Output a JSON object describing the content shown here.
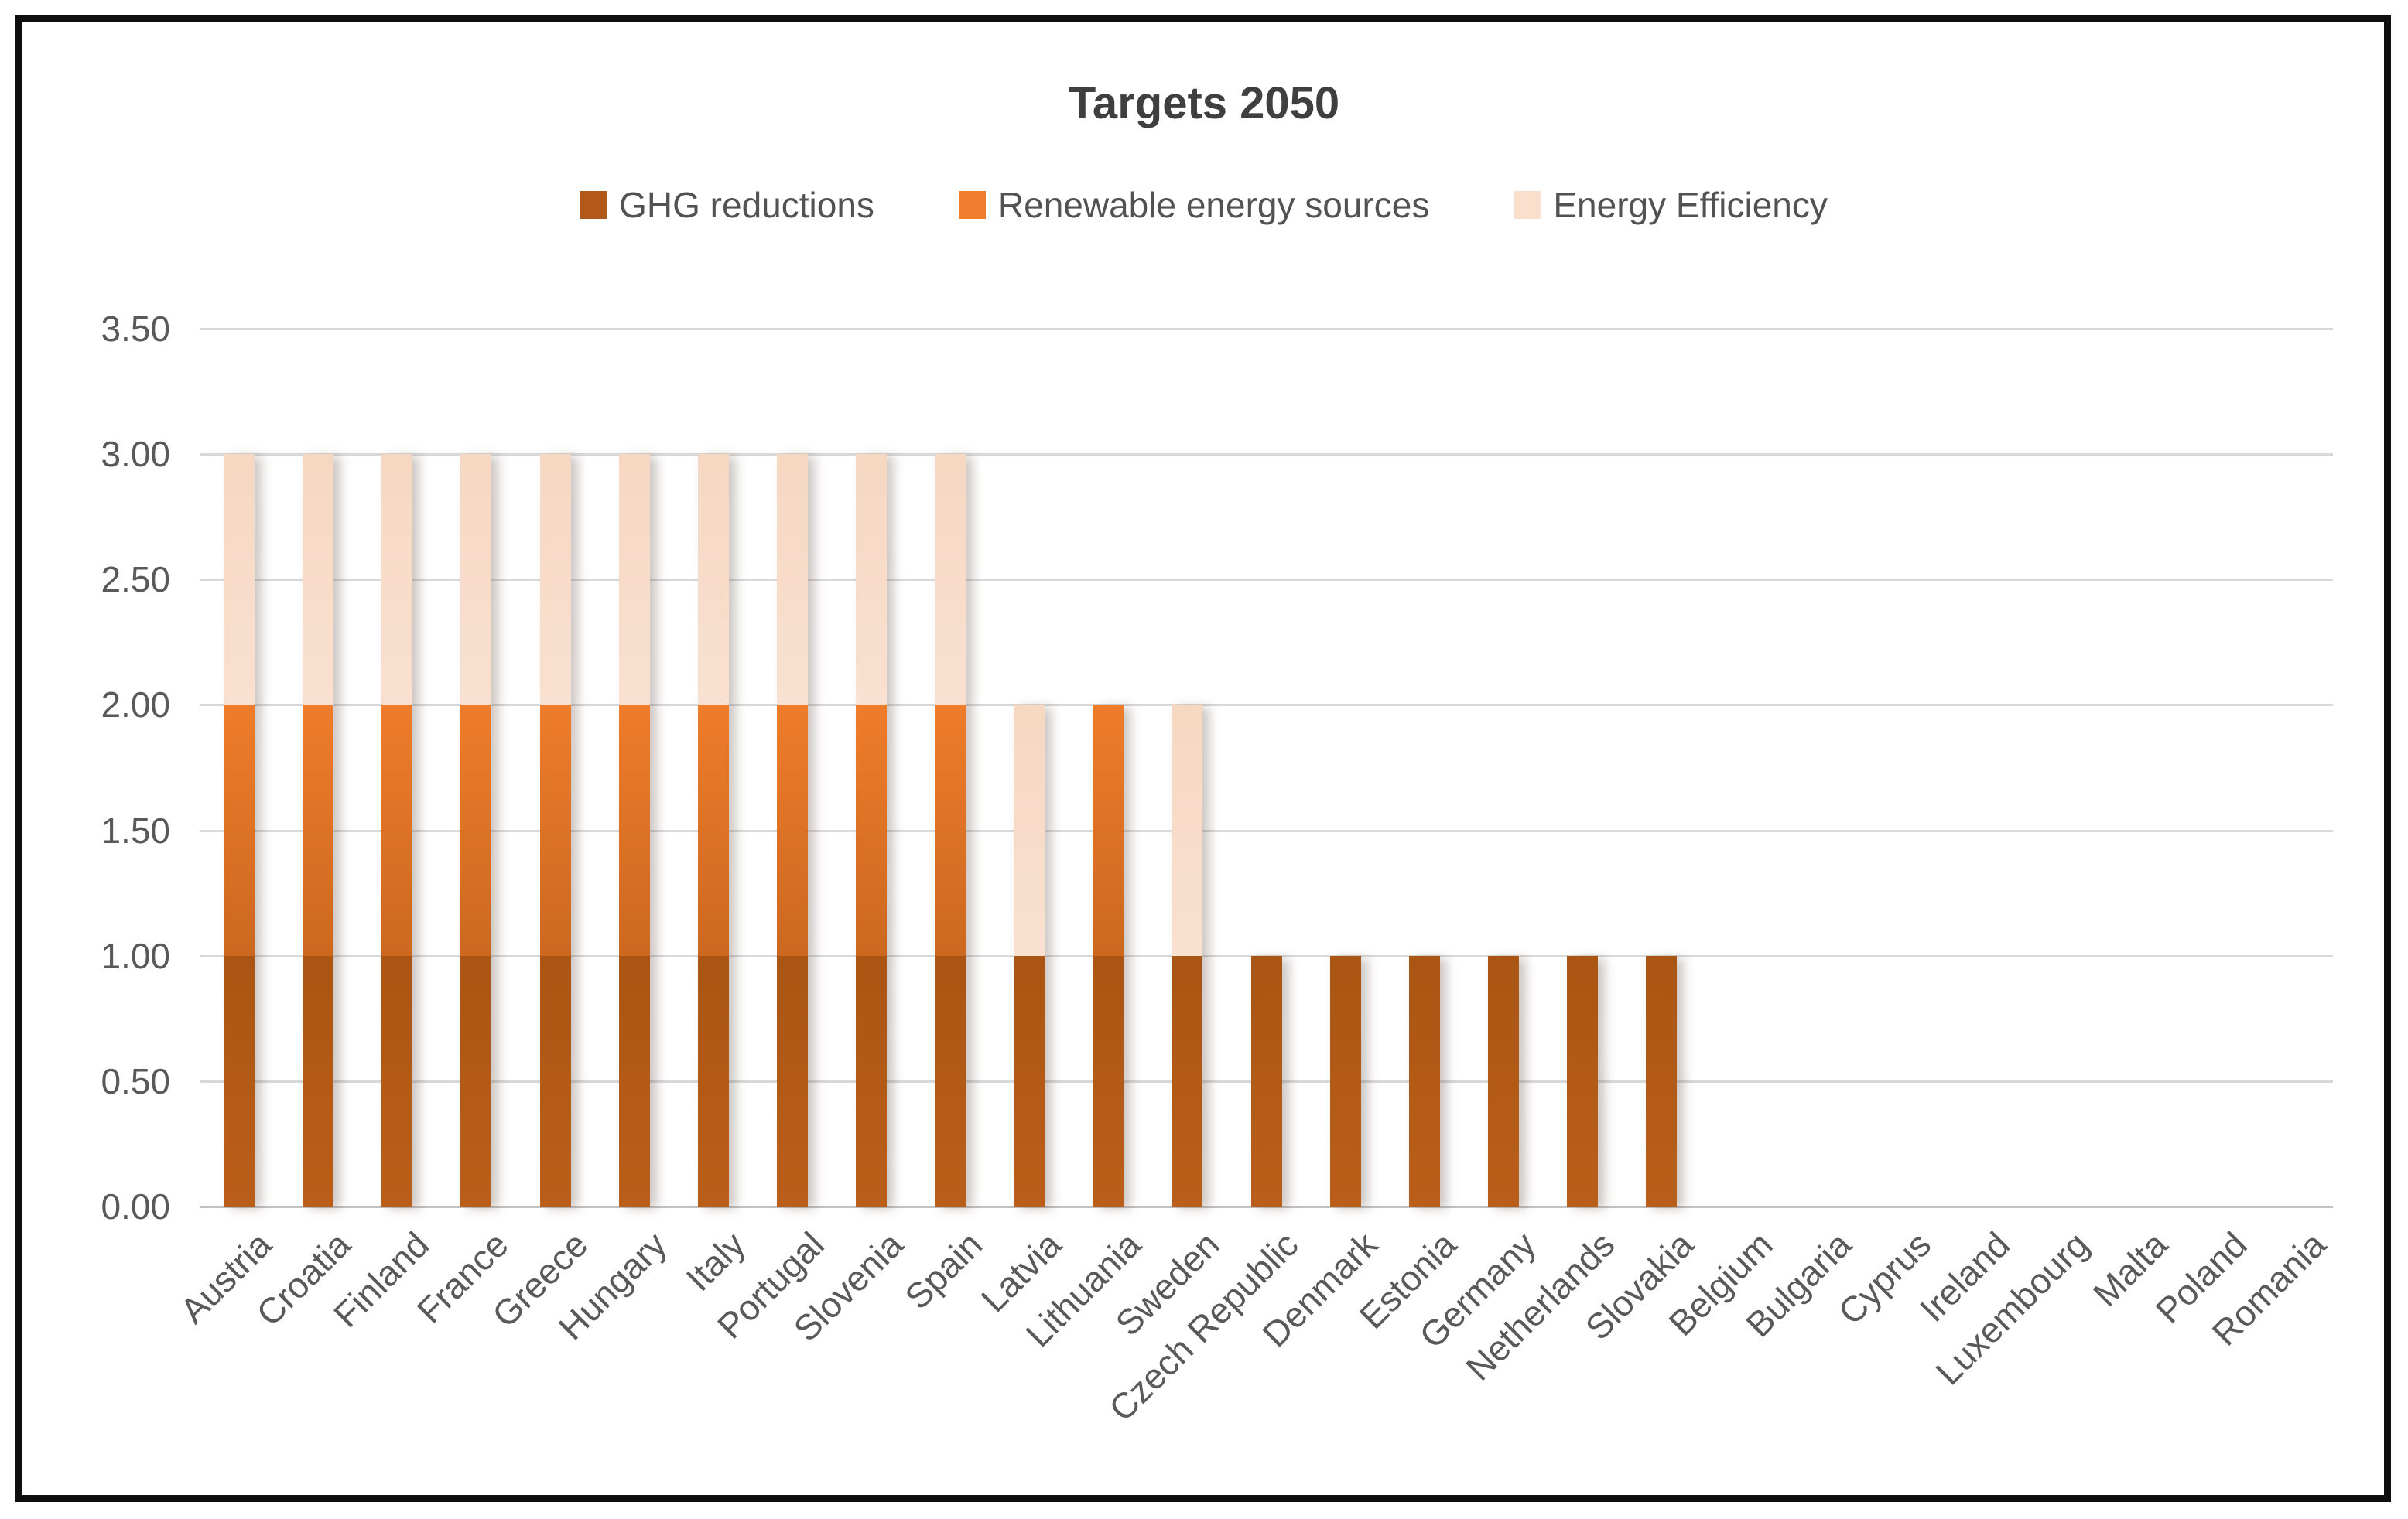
{
  "chart_data": {
    "type": "bar",
    "stacked": true,
    "title": "Targets 2050",
    "categories": [
      "Austria",
      "Croatia",
      "Finland",
      "France",
      "Greece",
      "Hungary",
      "Italy",
      "Portugal",
      "Slovenia",
      "Spain",
      "Latvia",
      "Lithuania",
      "Sweden",
      "Czech Republic",
      "Denmark",
      "Estonia",
      "Germany",
      "Netherlands",
      "Slovakia",
      "Belgium",
      "Bulgaria",
      "Cyprus",
      "Ireland",
      "Luxembourg",
      "Malta",
      "Poland",
      "Romania"
    ],
    "series": [
      {
        "name": "GHG reductions",
        "color": "#B2591A",
        "gradient": [
          "#AA5513",
          "#BA5F1A"
        ],
        "values": [
          1,
          1,
          1,
          1,
          1,
          1,
          1,
          1,
          1,
          1,
          1,
          1,
          1,
          1,
          1,
          1,
          1,
          1,
          1,
          0,
          0,
          0,
          0,
          0,
          0,
          0,
          0
        ]
      },
      {
        "name": "Renewable energy sources",
        "color": "#EE7D2E",
        "gradient": [
          "#EE7C2A",
          "#CC6820"
        ],
        "values": [
          1,
          1,
          1,
          1,
          1,
          1,
          1,
          1,
          1,
          1,
          0,
          1,
          0,
          0,
          0,
          0,
          0,
          0,
          0,
          0,
          0,
          0,
          0,
          0,
          0,
          0,
          0
        ]
      },
      {
        "name": "Energy Efficiency",
        "color": "#FADFCD",
        "gradient": [
          "#F6D8C2",
          "#F9E0D0"
        ],
        "values": [
          1,
          1,
          1,
          1,
          1,
          1,
          1,
          1,
          1,
          1,
          1,
          0,
          1,
          0,
          0,
          0,
          0,
          0,
          0,
          0,
          0,
          0,
          0,
          0,
          0,
          0,
          0
        ]
      }
    ],
    "totals": [
      3,
      3,
      3,
      3,
      3,
      3,
      3,
      3,
      3,
      3,
      2,
      2,
      2,
      1,
      1,
      1,
      1,
      1,
      1,
      0,
      0,
      0,
      0,
      0,
      0,
      0,
      0
    ],
    "ylim": [
      0,
      3.5
    ],
    "ytick_step": 0.5,
    "ytick_labels": [
      "0.00",
      "0.50",
      "1.00",
      "1.50",
      "2.00",
      "2.50",
      "3.00",
      "3.50"
    ],
    "grid": true,
    "legend_position": "top-center",
    "title_color": "#3F3F3F",
    "axis_text_color": "#595959",
    "gridline_color": "#D9D9D9",
    "zero_line_color": "#C2C2C2",
    "background_color": "#FFFFFF",
    "border_color": "#0F0F0F"
  }
}
